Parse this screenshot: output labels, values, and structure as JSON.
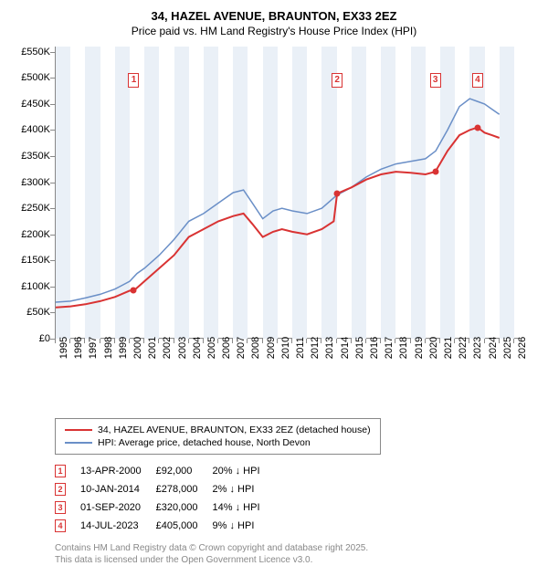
{
  "title": "34, HAZEL AVENUE, BRAUNTON, EX33 2EZ",
  "subtitle": "Price paid vs. HM Land Registry's House Price Index (HPI)",
  "chart": {
    "type": "line",
    "x_range": [
      1995,
      2026.5
    ],
    "y_range": [
      0,
      560000
    ],
    "y_ticks": [
      0,
      50000,
      100000,
      150000,
      200000,
      250000,
      300000,
      350000,
      400000,
      450000,
      500000,
      550000
    ],
    "y_tick_labels": [
      "£0",
      "£50K",
      "£100K",
      "£150K",
      "£200K",
      "£250K",
      "£300K",
      "£350K",
      "£400K",
      "£450K",
      "£500K",
      "£550K"
    ],
    "x_ticks": [
      1995,
      1996,
      1997,
      1998,
      1999,
      2000,
      2001,
      2002,
      2003,
      2004,
      2005,
      2006,
      2007,
      2008,
      2009,
      2010,
      2011,
      2012,
      2013,
      2014,
      2015,
      2016,
      2017,
      2018,
      2019,
      2020,
      2021,
      2022,
      2023,
      2024,
      2025,
      2026
    ],
    "band_color": "#eaf0f7",
    "background_color": "#ffffff",
    "marker_border": "#d93333",
    "marker_fill": "#ffffff",
    "series": {
      "hpi": {
        "color": "#6a8fc7",
        "width": 1.5,
        "data": [
          [
            1995,
            70000
          ],
          [
            1996,
            72000
          ],
          [
            1997,
            78000
          ],
          [
            1998,
            85000
          ],
          [
            1999,
            95000
          ],
          [
            2000,
            110000
          ],
          [
            2000.5,
            125000
          ],
          [
            2001,
            135000
          ],
          [
            2002,
            160000
          ],
          [
            2003,
            190000
          ],
          [
            2004,
            225000
          ],
          [
            2005,
            240000
          ],
          [
            2006,
            260000
          ],
          [
            2007,
            280000
          ],
          [
            2007.7,
            285000
          ],
          [
            2008.3,
            260000
          ],
          [
            2009,
            230000
          ],
          [
            2009.7,
            245000
          ],
          [
            2010.3,
            250000
          ],
          [
            2011,
            245000
          ],
          [
            2012,
            240000
          ],
          [
            2013,
            250000
          ],
          [
            2014,
            275000
          ],
          [
            2015,
            290000
          ],
          [
            2016,
            310000
          ],
          [
            2017,
            325000
          ],
          [
            2018,
            335000
          ],
          [
            2019,
            340000
          ],
          [
            2020,
            345000
          ],
          [
            2020.7,
            360000
          ],
          [
            2021.5,
            400000
          ],
          [
            2022.3,
            445000
          ],
          [
            2023,
            460000
          ],
          [
            2023.5,
            455000
          ],
          [
            2024,
            450000
          ],
          [
            2024.5,
            440000
          ],
          [
            2025,
            430000
          ]
        ]
      },
      "price_paid": {
        "color": "#d93333",
        "width": 2,
        "data": [
          [
            1995,
            60000
          ],
          [
            1996,
            62000
          ],
          [
            1997,
            66000
          ],
          [
            1998,
            72000
          ],
          [
            1999,
            80000
          ],
          [
            2000,
            92000
          ],
          [
            2000.28,
            92000
          ],
          [
            2001,
            110000
          ],
          [
            2002,
            135000
          ],
          [
            2003,
            160000
          ],
          [
            2004,
            195000
          ],
          [
            2005,
            210000
          ],
          [
            2006,
            225000
          ],
          [
            2007,
            235000
          ],
          [
            2007.7,
            240000
          ],
          [
            2008.3,
            220000
          ],
          [
            2009,
            195000
          ],
          [
            2009.7,
            205000
          ],
          [
            2010.3,
            210000
          ],
          [
            2011,
            205000
          ],
          [
            2012,
            200000
          ],
          [
            2013,
            210000
          ],
          [
            2013.8,
            225000
          ],
          [
            2014.03,
            278000
          ],
          [
            2015,
            290000
          ],
          [
            2016,
            305000
          ],
          [
            2017,
            315000
          ],
          [
            2018,
            320000
          ],
          [
            2019,
            318000
          ],
          [
            2020,
            315000
          ],
          [
            2020.67,
            320000
          ],
          [
            2021.5,
            360000
          ],
          [
            2022.3,
            390000
          ],
          [
            2023,
            400000
          ],
          [
            2023.53,
            405000
          ],
          [
            2024,
            395000
          ],
          [
            2024.5,
            390000
          ],
          [
            2025,
            385000
          ]
        ]
      }
    },
    "sale_points": [
      {
        "x": 2000.28,
        "y": 92000
      },
      {
        "x": 2014.03,
        "y": 278000
      },
      {
        "x": 2020.67,
        "y": 320000
      },
      {
        "x": 2023.53,
        "y": 405000
      }
    ],
    "markers": [
      {
        "n": "1",
        "x": 2000.28
      },
      {
        "n": "2",
        "x": 2014.03
      },
      {
        "n": "3",
        "x": 2020.67
      },
      {
        "n": "4",
        "x": 2023.53
      }
    ]
  },
  "legend": {
    "series1": {
      "color": "#d93333",
      "label": "34, HAZEL AVENUE, BRAUNTON, EX33 2EZ (detached house)"
    },
    "series2": {
      "color": "#6a8fc7",
      "label": "HPI: Average price, detached house, North Devon"
    }
  },
  "notes": [
    {
      "n": "1",
      "date": "13-APR-2000",
      "price": "£92,000",
      "diff": "20% ↓ HPI"
    },
    {
      "n": "2",
      "date": "10-JAN-2014",
      "price": "£278,000",
      "diff": "2% ↓ HPI"
    },
    {
      "n": "3",
      "date": "01-SEP-2020",
      "price": "£320,000",
      "diff": "14% ↓ HPI"
    },
    {
      "n": "4",
      "date": "14-JUL-2023",
      "price": "£405,000",
      "diff": "9% ↓ HPI"
    }
  ],
  "footer_line1": "Contains HM Land Registry data © Crown copyright and database right 2025.",
  "footer_line2": "This data is licensed under the Open Government Licence v3.0."
}
